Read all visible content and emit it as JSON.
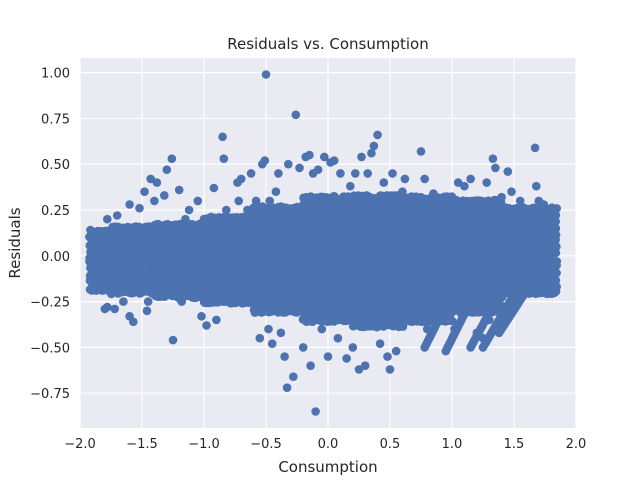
{
  "chart_data": {
    "type": "scatter",
    "title": "Residuals vs. Consumption",
    "xlabel": "Consumption",
    "ylabel": "Residuals",
    "xlim": [
      -2.0,
      2.0
    ],
    "ylim": [
      -0.94,
      1.08
    ],
    "xticks": [
      -2.0,
      -1.5,
      -1.0,
      -0.5,
      0.0,
      0.5,
      1.0,
      1.5,
      2.0
    ],
    "xtick_labels": [
      "−2.0",
      "−1.5",
      "−1.0",
      "−0.5",
      "0.0",
      "0.5",
      "1.0",
      "1.5",
      "2.0"
    ],
    "yticks": [
      -0.75,
      -0.5,
      -0.25,
      0.0,
      0.25,
      0.5,
      0.75,
      1.0
    ],
    "ytick_labels": [
      "−0.75",
      "−0.50",
      "−0.25",
      "0.00",
      "0.25",
      "0.50",
      "0.75",
      "1.00"
    ],
    "grid": true,
    "legend": "none",
    "colors": {
      "background": "#eaeaf2",
      "grid": "#ffffff",
      "marker": "#4c72b0"
    },
    "series": [
      {
        "color": "#4c72b0",
        "points": [
          [
            -1.9,
            0.0
          ],
          [
            -1.9,
            -0.05
          ],
          [
            -1.88,
            0.05
          ],
          [
            -1.85,
            -0.1
          ],
          [
            -1.85,
            0.1
          ],
          [
            -1.82,
            -0.19
          ],
          [
            -1.8,
            -0.29
          ],
          [
            -1.78,
            -0.28
          ],
          [
            -1.78,
            0.2
          ],
          [
            -1.75,
            -0.15
          ],
          [
            -1.7,
            0.22
          ],
          [
            -1.7,
            -0.2
          ],
          [
            -1.72,
            -0.29
          ],
          [
            -1.65,
            -0.25
          ],
          [
            -1.6,
            0.28
          ],
          [
            -1.6,
            -0.2
          ],
          [
            -1.6,
            -0.33
          ],
          [
            -1.57,
            -0.36
          ],
          [
            -1.55,
            0.16
          ],
          [
            -1.52,
            0.26
          ],
          [
            -1.5,
            -0.18
          ],
          [
            -1.48,
            0.35
          ],
          [
            -1.46,
            -0.3
          ],
          [
            -1.45,
            -0.25
          ],
          [
            -1.43,
            0.42
          ],
          [
            -1.4,
            0.3
          ],
          [
            -1.38,
            0.4
          ],
          [
            -1.35,
            -0.2
          ],
          [
            -1.32,
            0.33
          ],
          [
            -1.3,
            0.47
          ],
          [
            -1.28,
            0.15
          ],
          [
            -1.26,
            0.53
          ],
          [
            -1.25,
            -0.46
          ],
          [
            -1.22,
            -0.1
          ],
          [
            -1.2,
            0.36
          ],
          [
            -1.18,
            -0.25
          ],
          [
            -1.15,
            0.2
          ],
          [
            -1.12,
            0.25
          ],
          [
            -1.08,
            -0.17
          ],
          [
            -1.05,
            0.3
          ],
          [
            -1.02,
            -0.33
          ],
          [
            -1.0,
            0.2
          ],
          [
            -0.98,
            -0.38
          ],
          [
            -0.95,
            -0.15
          ],
          [
            -0.92,
            0.37
          ],
          [
            -0.9,
            -0.35
          ],
          [
            -0.88,
            0.21
          ],
          [
            -0.85,
            0.65
          ],
          [
            -0.84,
            0.53
          ],
          [
            -0.82,
            0.25
          ],
          [
            -0.8,
            -0.15
          ],
          [
            -0.78,
            0.2
          ],
          [
            -0.76,
            0.18
          ],
          [
            -0.73,
            0.4
          ],
          [
            -0.72,
            0.3
          ],
          [
            -0.7,
            0.42
          ],
          [
            -0.68,
            -0.15
          ],
          [
            -0.65,
            0.25
          ],
          [
            -0.62,
            0.45
          ],
          [
            -0.6,
            -0.2
          ],
          [
            -0.58,
            0.3
          ],
          [
            -0.55,
            -0.45
          ],
          [
            -0.53,
            0.5
          ],
          [
            -0.51,
            0.52
          ],
          [
            -0.5,
            0.99
          ],
          [
            -0.48,
            -0.4
          ],
          [
            -0.47,
            0.3
          ],
          [
            -0.45,
            -0.48
          ],
          [
            -0.42,
            0.35
          ],
          [
            -0.4,
            0.45
          ],
          [
            -0.38,
            -0.42
          ],
          [
            -0.35,
            -0.55
          ],
          [
            -0.33,
            -0.72
          ],
          [
            -0.32,
            0.5
          ],
          [
            -0.3,
            0.2
          ],
          [
            -0.28,
            -0.66
          ],
          [
            -0.26,
            0.77
          ],
          [
            -0.25,
            -0.3
          ],
          [
            -0.23,
            0.48
          ],
          [
            -0.2,
            -0.5
          ],
          [
            -0.18,
            0.54
          ],
          [
            -0.15,
            0.55
          ],
          [
            -0.14,
            -0.6
          ],
          [
            -0.12,
            0.45
          ],
          [
            -0.1,
            -0.85
          ],
          [
            -0.08,
            0.47
          ],
          [
            -0.05,
            -0.4
          ],
          [
            -0.03,
            0.54
          ],
          [
            0.0,
            -0.55
          ],
          [
            0.02,
            0.51
          ],
          [
            0.05,
            0.52
          ],
          [
            0.08,
            -0.45
          ],
          [
            0.1,
            0.45
          ],
          [
            0.12,
            -0.3
          ],
          [
            0.15,
            -0.56
          ],
          [
            0.18,
            0.38
          ],
          [
            0.2,
            -0.5
          ],
          [
            0.22,
            0.45
          ],
          [
            0.25,
            -0.62
          ],
          [
            0.27,
            0.54
          ],
          [
            0.3,
            -0.6
          ],
          [
            0.32,
            0.45
          ],
          [
            0.35,
            0.56
          ],
          [
            0.37,
            0.6
          ],
          [
            0.4,
            0.66
          ],
          [
            0.42,
            -0.48
          ],
          [
            0.45,
            0.4
          ],
          [
            0.48,
            -0.55
          ],
          [
            0.5,
            -0.62
          ],
          [
            0.52,
            0.45
          ],
          [
            0.55,
            -0.52
          ],
          [
            0.6,
            0.35
          ],
          [
            0.62,
            0.42
          ],
          [
            0.65,
            0.25
          ],
          [
            0.7,
            -0.2
          ],
          [
            0.73,
            -0.3
          ],
          [
            0.75,
            0.57
          ],
          [
            0.78,
            0.42
          ],
          [
            0.8,
            -0.4
          ],
          [
            0.82,
            0.1
          ],
          [
            0.85,
            0.34
          ],
          [
            0.9,
            -0.35
          ],
          [
            0.95,
            0.32
          ],
          [
            1.0,
            0.25
          ],
          [
            1.02,
            -0.4
          ],
          [
            1.05,
            0.4
          ],
          [
            1.08,
            -0.25
          ],
          [
            1.1,
            0.38
          ],
          [
            1.12,
            -0.3
          ],
          [
            1.15,
            0.42
          ],
          [
            1.2,
            -0.42
          ],
          [
            1.22,
            0.2
          ],
          [
            1.25,
            -0.45
          ],
          [
            1.28,
            0.4
          ],
          [
            1.3,
            -0.35
          ],
          [
            1.33,
            0.53
          ],
          [
            1.35,
            0.48
          ],
          [
            1.38,
            -0.4
          ],
          [
            1.4,
            0.32
          ],
          [
            1.42,
            -0.35
          ],
          [
            1.45,
            0.46
          ],
          [
            1.48,
            0.35
          ],
          [
            1.5,
            -0.25
          ],
          [
            1.52,
            0.25
          ],
          [
            1.55,
            0.3
          ],
          [
            1.58,
            -0.15
          ],
          [
            1.6,
            0.2
          ],
          [
            1.62,
            0.1
          ],
          [
            1.65,
            0.25
          ],
          [
            1.67,
            0.59
          ],
          [
            1.68,
            0.38
          ],
          [
            1.7,
            0.3
          ],
          [
            1.72,
            0.15
          ],
          [
            1.74,
            0.28
          ],
          [
            1.76,
            0.2
          ],
          [
            1.78,
            0.25
          ],
          [
            1.8,
            0.1
          ],
          [
            1.82,
            0.05
          ]
        ],
        "bands": [
          {
            "x": [
              -1.92,
              -1.75
            ],
            "y": [
              -0.18,
              0.16
            ]
          },
          {
            "x": [
              -1.75,
              -1.4
            ],
            "y": [
              -0.2,
              0.18
            ]
          },
          {
            "x": [
              -1.4,
              -1.0
            ],
            "y": [
              -0.22,
              0.2
            ]
          },
          {
            "x": [
              -1.0,
              -0.6
            ],
            "y": [
              -0.25,
              0.22
            ]
          },
          {
            "x": [
              -0.6,
              -0.2
            ],
            "y": [
              -0.3,
              0.28
            ]
          },
          {
            "x": [
              -0.2,
              0.2
            ],
            "y": [
              -0.35,
              0.35
            ]
          },
          {
            "x": [
              0.2,
              0.6
            ],
            "y": [
              -0.38,
              0.35
            ]
          },
          {
            "x": [
              0.6,
              1.0
            ],
            "y": [
              -0.35,
              0.32
            ]
          },
          {
            "x": [
              1.0,
              1.4
            ],
            "y": [
              -0.3,
              0.3
            ]
          },
          {
            "x": [
              1.4,
              1.84
            ],
            "y": [
              -0.2,
              0.28
            ]
          }
        ],
        "stripes": [
          {
            "x": [
              0.78,
              1.15
            ],
            "y": [
              -0.5,
              0.0
            ]
          },
          {
            "x": [
              0.95,
              1.35
            ],
            "y": [
              -0.52,
              0.02
            ]
          },
          {
            "x": [
              1.15,
              1.55
            ],
            "y": [
              -0.5,
              0.0
            ]
          },
          {
            "x": [
              1.25,
              1.7
            ],
            "y": [
              -0.5,
              0.02
            ]
          },
          {
            "x": [
              1.38,
              1.83
            ],
            "y": [
              -0.42,
              0.05
            ]
          }
        ]
      }
    ]
  }
}
